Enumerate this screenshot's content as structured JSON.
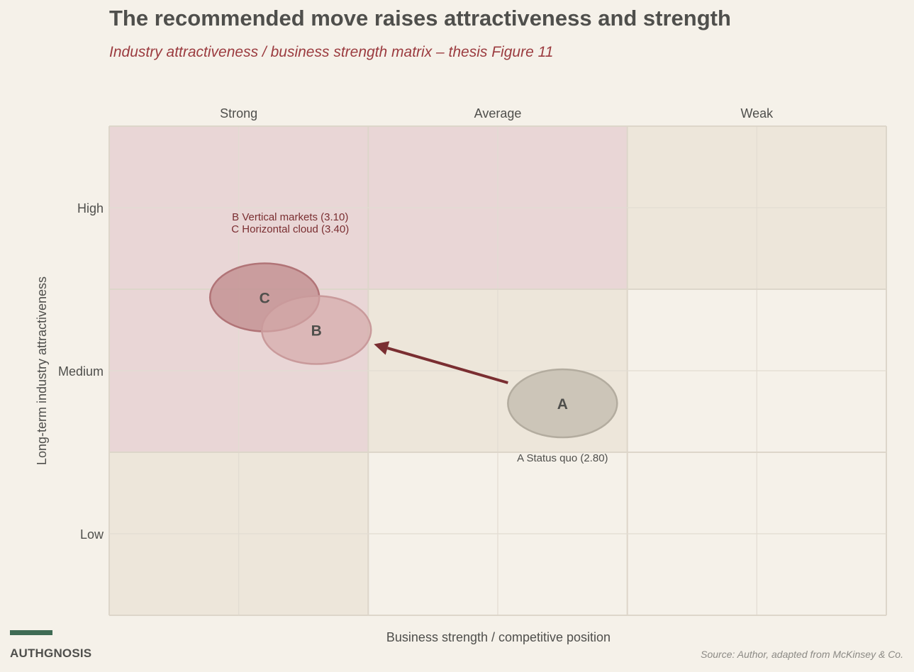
{
  "header": {
    "title": "The recommended move raises attractiveness and strength",
    "subtitle": "Industry attractiveness / business strength matrix – thesis Figure 11"
  },
  "chart_data": {
    "type": "bubble-matrix",
    "x_axis": {
      "label": "Business strength / competitive position",
      "columns": [
        "Strong",
        "Average",
        "Weak"
      ],
      "range": [
        3,
        0
      ],
      "direction": "reversed"
    },
    "y_axis": {
      "label": "Long-term industry attractiveness",
      "rows": [
        "High",
        "Medium",
        "Low"
      ],
      "range": [
        0,
        3
      ]
    },
    "zone_colors": {
      "invest": "#e9d6d6",
      "selective": "#ede6da",
      "harvest": "#f5f1e9"
    },
    "cells": [
      [
        "invest",
        "invest",
        "selective"
      ],
      [
        "invest",
        "selective",
        "harvest"
      ],
      [
        "selective",
        "harvest",
        "harvest"
      ]
    ],
    "points": [
      {
        "id": "A",
        "name": "Status quo",
        "score": 2.8,
        "strength": 1.25,
        "attractiveness": 1.3,
        "fill": "#c6beb2",
        "stroke": "#b3ac9f",
        "fill_opacity": 0.85,
        "label": "A  Status quo (2.80)"
      },
      {
        "id": "B",
        "name": "Vertical markets",
        "score": 3.1,
        "strength": 2.2,
        "attractiveness": 1.75,
        "fill": "#d4aaaa",
        "stroke": "#c99a9b",
        "fill_opacity": 0.7,
        "label": "B  Vertical markets (3.10)"
      },
      {
        "id": "C",
        "name": "Horizontal cloud",
        "score": 3.4,
        "strength": 2.4,
        "attractiveness": 1.95,
        "fill": "#c28e90",
        "stroke": "#b17477",
        "fill_opacity": 0.8,
        "label": "C  Horizontal cloud (3.40)"
      }
    ],
    "arrow": {
      "from": "A",
      "to": "B",
      "color": "#7a2e31"
    }
  },
  "footer": {
    "brand": "AUTHGNOSIS",
    "source": "Source: Author, adapted from McKinsey & Co."
  }
}
